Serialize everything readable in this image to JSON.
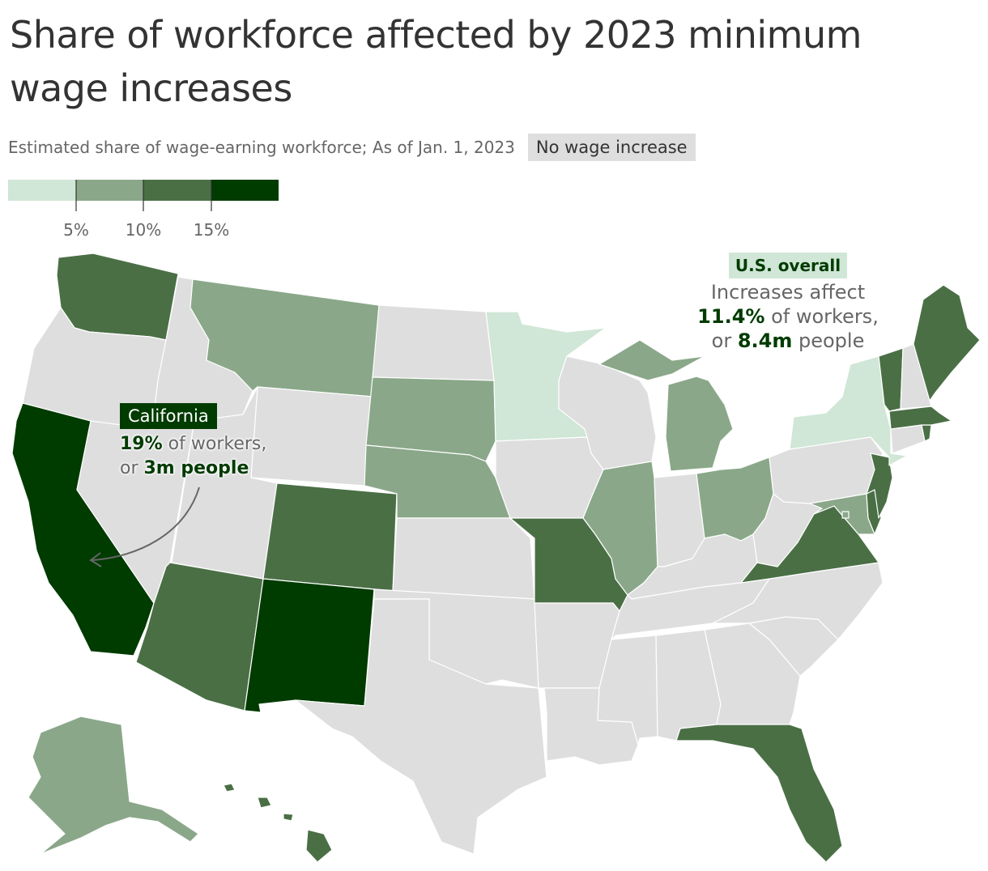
{
  "title": "Share of workforce affected by 2023 minimum wage increases",
  "subtitle": "Estimated share of wage-earning workforce; As of Jan. 1, 2023",
  "no_increase_label": "No wage increase",
  "legend": {
    "ticks": [
      "5%",
      "10%",
      "15%"
    ],
    "colors": [
      "#d0e6d6",
      "#8aa889",
      "#4a6f45",
      "#003b00"
    ],
    "no_increase_color": "#dedede"
  },
  "callouts": {
    "us": {
      "label": "U.S. overall",
      "line1": "Increases affect",
      "pct": "11.4%",
      "pct_suffix": " of workers,",
      "or": "or ",
      "count": "8.4m",
      "count_suffix": " people"
    },
    "ca": {
      "label": "California",
      "pct": "19%",
      "pct_suffix": " of workers,",
      "or": "or ",
      "count": "3m people"
    }
  },
  "states": [
    {
      "id": "WA",
      "name": "Washington",
      "bin": 3
    },
    {
      "id": "OR",
      "name": "Oregon",
      "bin": 0
    },
    {
      "id": "CA",
      "name": "California",
      "bin": 4
    },
    {
      "id": "ID",
      "name": "Idaho",
      "bin": 0
    },
    {
      "id": "NV",
      "name": "Nevada",
      "bin": 0
    },
    {
      "id": "MT",
      "name": "Montana",
      "bin": 2
    },
    {
      "id": "WY",
      "name": "Wyoming",
      "bin": 0
    },
    {
      "id": "UT",
      "name": "Utah",
      "bin": 0
    },
    {
      "id": "AZ",
      "name": "Arizona",
      "bin": 3
    },
    {
      "id": "CO",
      "name": "Colorado",
      "bin": 3
    },
    {
      "id": "NM",
      "name": "New Mexico",
      "bin": 4
    },
    {
      "id": "ND",
      "name": "North Dakota",
      "bin": 0
    },
    {
      "id": "SD",
      "name": "South Dakota",
      "bin": 2
    },
    {
      "id": "NE",
      "name": "Nebraska",
      "bin": 2
    },
    {
      "id": "KS",
      "name": "Kansas",
      "bin": 0
    },
    {
      "id": "OK",
      "name": "Oklahoma",
      "bin": 0
    },
    {
      "id": "TX",
      "name": "Texas",
      "bin": 0
    },
    {
      "id": "MN",
      "name": "Minnesota",
      "bin": 1
    },
    {
      "id": "IA",
      "name": "Iowa",
      "bin": 0
    },
    {
      "id": "MO",
      "name": "Missouri",
      "bin": 3
    },
    {
      "id": "AR",
      "name": "Arkansas",
      "bin": 0
    },
    {
      "id": "LA",
      "name": "Louisiana",
      "bin": 0
    },
    {
      "id": "WI",
      "name": "Wisconsin",
      "bin": 0
    },
    {
      "id": "IL",
      "name": "Illinois",
      "bin": 2
    },
    {
      "id": "MI",
      "name": "Michigan",
      "bin": 2
    },
    {
      "id": "IN",
      "name": "Indiana",
      "bin": 0
    },
    {
      "id": "OH",
      "name": "Ohio",
      "bin": 2
    },
    {
      "id": "KY",
      "name": "Kentucky",
      "bin": 0
    },
    {
      "id": "TN",
      "name": "Tennessee",
      "bin": 0
    },
    {
      "id": "MS",
      "name": "Mississippi",
      "bin": 0
    },
    {
      "id": "AL",
      "name": "Alabama",
      "bin": 0
    },
    {
      "id": "GA",
      "name": "Georgia",
      "bin": 0
    },
    {
      "id": "FL",
      "name": "Florida",
      "bin": 3
    },
    {
      "id": "SC",
      "name": "South Carolina",
      "bin": 0
    },
    {
      "id": "NC",
      "name": "North Carolina",
      "bin": 0
    },
    {
      "id": "VA",
      "name": "Virginia",
      "bin": 3
    },
    {
      "id": "WV",
      "name": "West Virginia",
      "bin": 0
    },
    {
      "id": "PA",
      "name": "Pennsylvania",
      "bin": 0
    },
    {
      "id": "NY",
      "name": "New York",
      "bin": 1
    },
    {
      "id": "VT",
      "name": "Vermont",
      "bin": 3
    },
    {
      "id": "NH",
      "name": "New Hampshire",
      "bin": 0
    },
    {
      "id": "ME",
      "name": "Maine",
      "bin": 3
    },
    {
      "id": "MA",
      "name": "Massachusetts",
      "bin": 3
    },
    {
      "id": "RI",
      "name": "Rhode Island",
      "bin": 3
    },
    {
      "id": "CT",
      "name": "Connecticut",
      "bin": 0
    },
    {
      "id": "NJ",
      "name": "New Jersey",
      "bin": 3
    },
    {
      "id": "DE",
      "name": "Delaware",
      "bin": 3
    },
    {
      "id": "MD",
      "name": "Maryland",
      "bin": 2
    },
    {
      "id": "DC",
      "name": "District of Columbia",
      "bin": 2
    },
    {
      "id": "AK",
      "name": "Alaska",
      "bin": 2
    },
    {
      "id": "HI",
      "name": "Hawaii",
      "bin": 3
    }
  ]
}
